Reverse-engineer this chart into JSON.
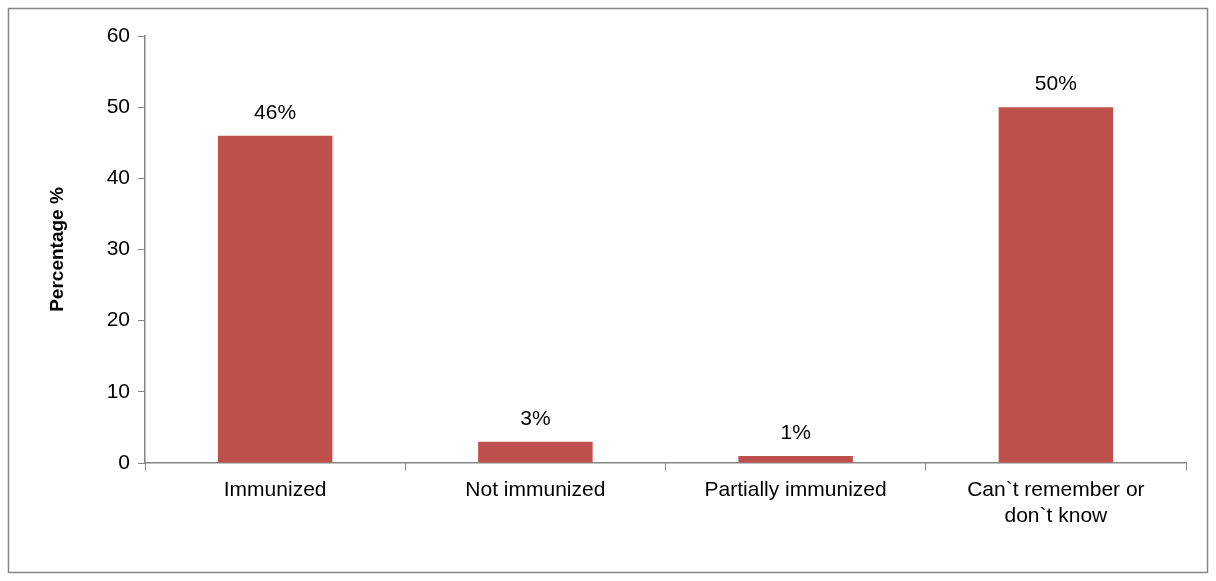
{
  "chart_data": {
    "type": "bar",
    "ylabel": "Percentage %",
    "categories": [
      "Immunized",
      "Not immunized",
      "Partially immunized",
      "Can`t remember or don`t know"
    ],
    "values": [
      46,
      3,
      1,
      50
    ],
    "color": "#c0504d",
    "value_labels": [
      "46%",
      "3%",
      "1%",
      "50%"
    ],
    "ylim": [
      0,
      60
    ],
    "yticks": [
      0,
      10,
      20,
      30,
      40,
      50,
      60
    ],
    "grid": false,
    "legend": false
  }
}
